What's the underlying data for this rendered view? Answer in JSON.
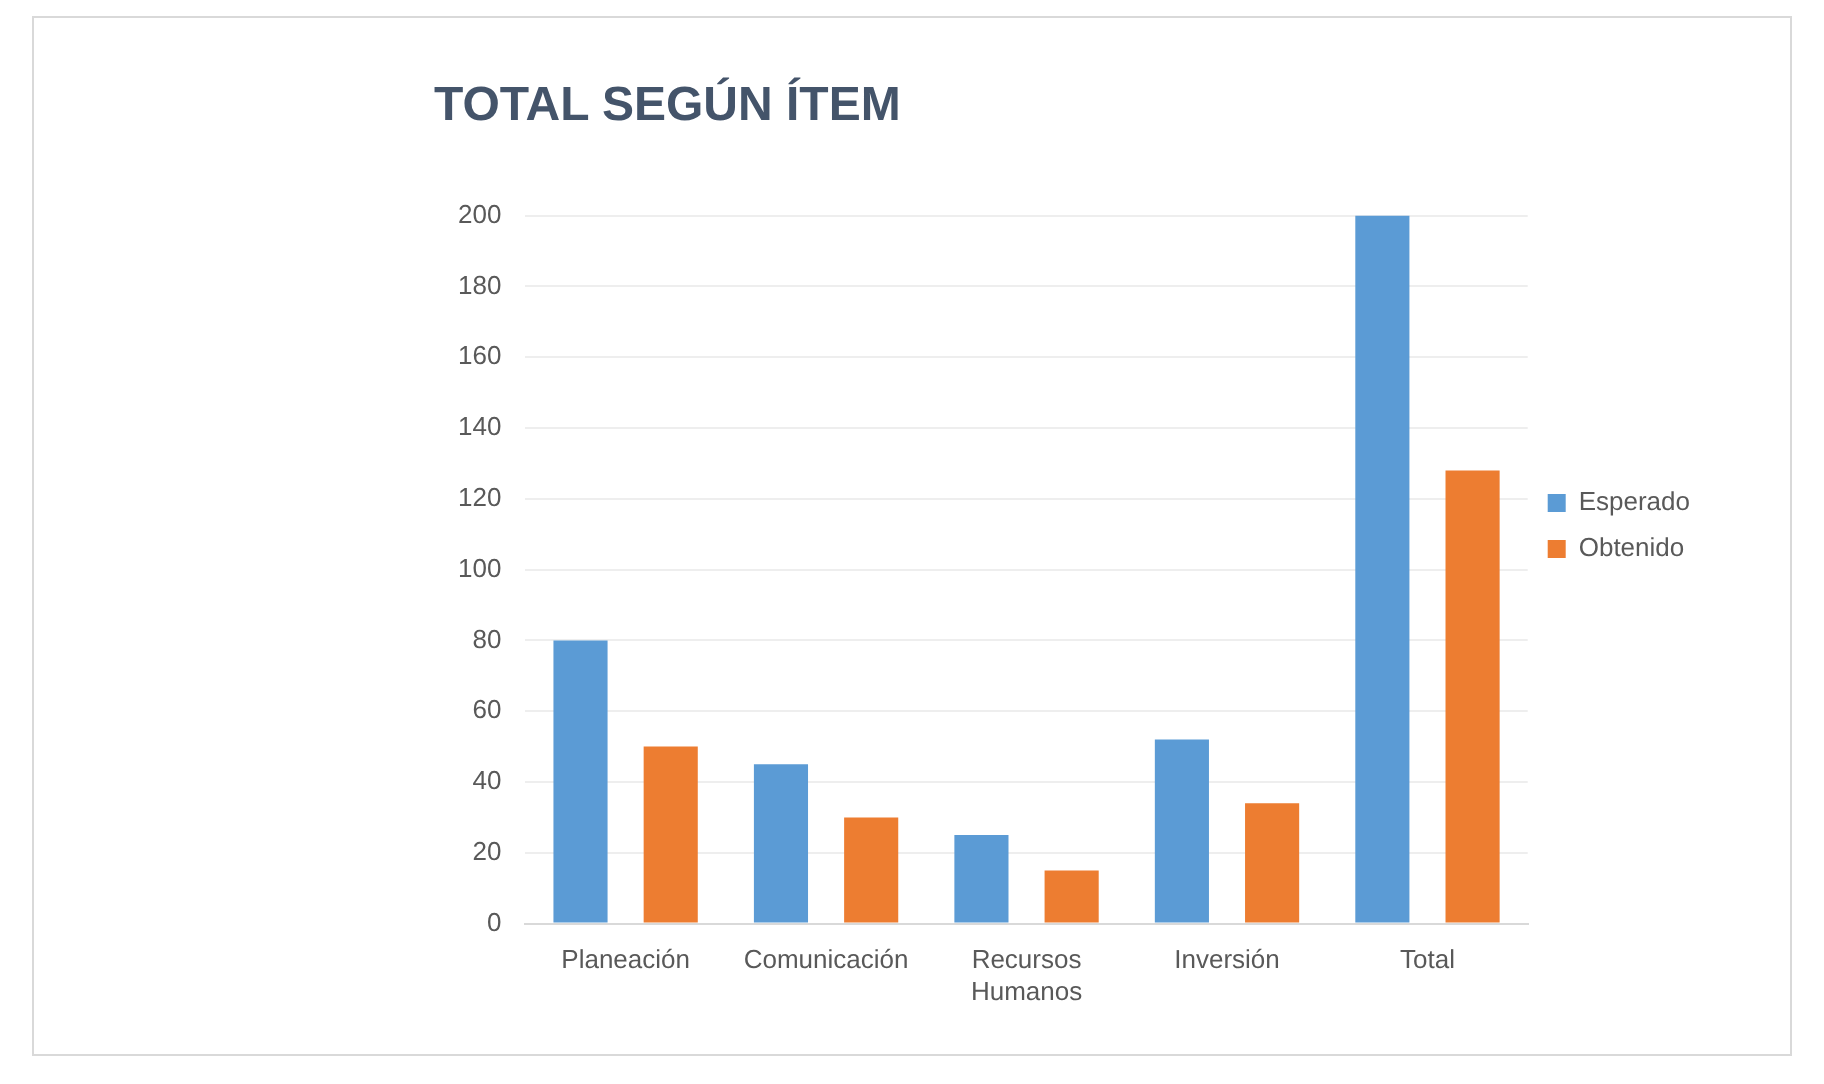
{
  "chart_data": {
    "type": "bar",
    "title": "TOTAL SEGÚN ÍTEM",
    "categories": [
      "Planeación",
      "Comunicación",
      "Recursos Humanos",
      "Inversión",
      "Total"
    ],
    "series": [
      {
        "name": "Esperado",
        "color": "#5b9bd5",
        "values": [
          80,
          45,
          25,
          52,
          200
        ]
      },
      {
        "name": "Obtenido",
        "color": "#ed7d31",
        "values": [
          50,
          30,
          15,
          34,
          128
        ]
      }
    ],
    "ylim": [
      0,
      200
    ],
    "yticks": [
      0,
      20,
      40,
      60,
      80,
      100,
      120,
      140,
      160,
      180,
      200
    ],
    "grid": "y",
    "legend": "right"
  }
}
